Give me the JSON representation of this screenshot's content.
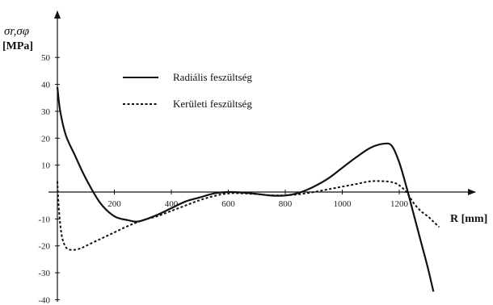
{
  "chart_data": {
    "type": "line",
    "ylabel_symbols": "σr,σφ",
    "ylabel_unit": "[MPa]",
    "xlabel": "R [mm]",
    "xlim": [
      0,
      1370
    ],
    "ylim": [
      -40,
      55
    ],
    "xticks": [
      "200",
      "400",
      "600",
      "800",
      "1000",
      "1200"
    ],
    "yticks_pos": [
      "10",
      "20",
      "30",
      "40",
      "50"
    ],
    "yticks_neg": [
      "-10",
      "-20",
      "-30",
      "-40"
    ],
    "legend_position": "top-center",
    "series": [
      {
        "name": "Radiális feszültség",
        "style": "solid",
        "x": [
          0,
          10,
          30,
          60,
          100,
          150,
          200,
          250,
          275,
          300,
          350,
          400,
          450,
          500,
          550,
          600,
          650,
          700,
          750,
          800,
          850,
          900,
          950,
          1000,
          1050,
          1100,
          1150,
          1175,
          1200,
          1225,
          1250,
          1275,
          1300,
          1320
        ],
        "y": [
          39,
          30,
          21,
          14,
          5,
          -4,
          -9,
          -10.5,
          -11,
          -10.5,
          -8.5,
          -6,
          -3.5,
          -2,
          -0.5,
          0,
          -0.2,
          -0.7,
          -1.3,
          -1.3,
          -0.2,
          2,
          5,
          9,
          13,
          16.5,
          18,
          17,
          11,
          2,
          -8,
          -18,
          -28,
          -37
        ]
      },
      {
        "name": "Kerületi feszültség",
        "style": "dashed",
        "x": [
          0,
          5,
          15,
          30,
          50,
          80,
          100,
          150,
          200,
          250,
          300,
          350,
          400,
          450,
          500,
          550,
          600,
          650,
          700,
          750,
          800,
          850,
          900,
          950,
          1000,
          1050,
          1100,
          1150,
          1180,
          1200,
          1225,
          1250,
          1275,
          1300,
          1320,
          1340
        ],
        "y": [
          4,
          -6,
          -16,
          -20.5,
          -21.5,
          -21,
          -20,
          -17.5,
          -15,
          -12.5,
          -10.5,
          -9,
          -7,
          -5,
          -3,
          -1.5,
          -0.5,
          -0.5,
          -0.8,
          -1.2,
          -1.2,
          -0.8,
          0,
          1,
          2,
          3,
          4,
          4,
          3.5,
          2.5,
          0,
          -4,
          -7,
          -9,
          -11,
          -13
        ]
      }
    ]
  }
}
